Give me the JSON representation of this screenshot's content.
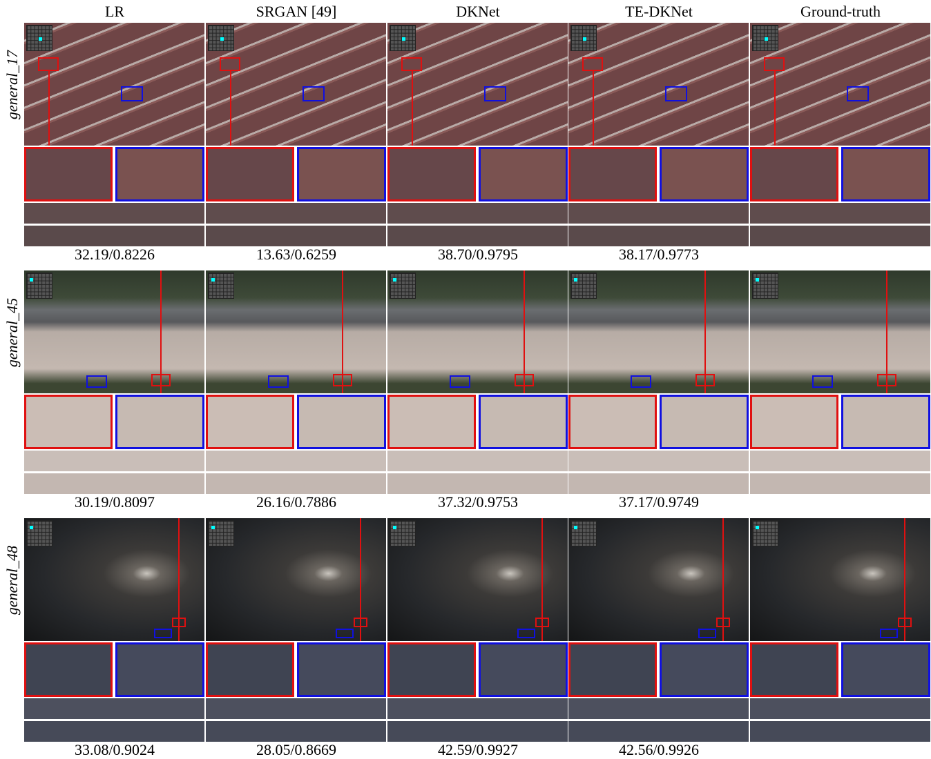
{
  "columns": [
    "LR",
    "SRGAN [49]",
    "DKNet",
    "TE-DKNet",
    "Ground-truth"
  ],
  "rows": [
    {
      "label": "general_17",
      "metrics": [
        "32.19/0.8226",
        "13.63/0.6259",
        "38.70/0.9795",
        "38.17/0.9773"
      ]
    },
    {
      "label": "general_45",
      "metrics": [
        "30.19/0.8097",
        "26.16/0.7886",
        "37.32/0.9753",
        "37.17/0.9749"
      ]
    },
    {
      "label": "general_48",
      "metrics": [
        "33.08/0.9024",
        "28.05/0.8669",
        "42.59/0.9927",
        "42.56/0.9926"
      ]
    }
  ]
}
